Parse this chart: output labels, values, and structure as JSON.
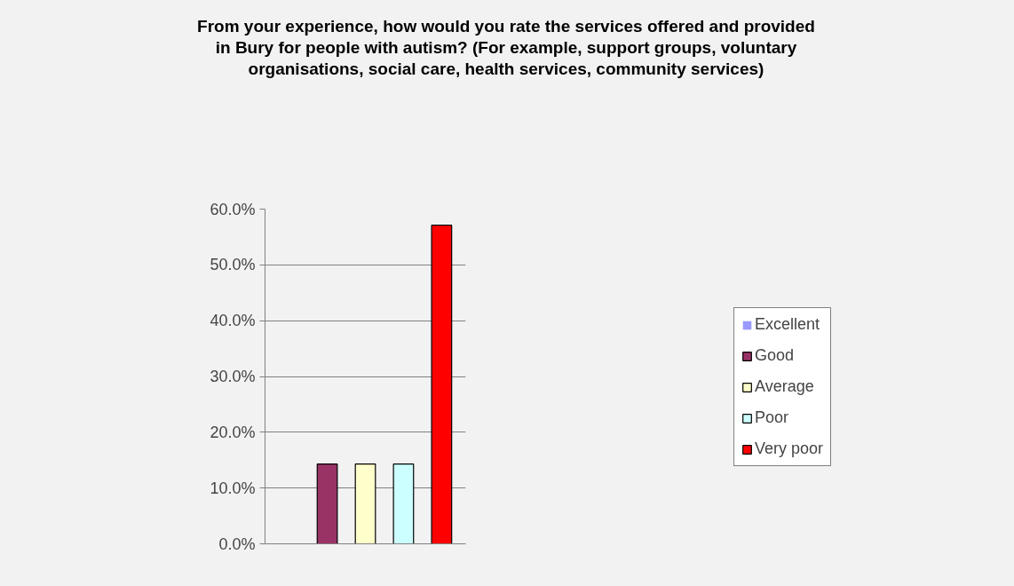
{
  "chart_data": {
    "type": "bar",
    "title": "From your experience, how would you rate the services offered and provided in Bury for people with autism? (For example, support groups, voluntary organisations, social care, health services, community services)",
    "categories": [
      null
    ],
    "series": [
      {
        "name": "Excellent",
        "color": "#9999ff",
        "values": [
          0
        ]
      },
      {
        "name": "Good",
        "color": "#993366",
        "values": [
          14.3
        ]
      },
      {
        "name": "Average",
        "color": "#ffffcc",
        "values": [
          14.3
        ]
      },
      {
        "name": "Poor",
        "color": "#ccffff",
        "values": [
          14.3
        ]
      },
      {
        "name": "Very poor",
        "color": "#ff0000",
        "values": [
          57.1
        ]
      }
    ],
    "ylim": [
      0,
      60
    ],
    "yticks": [
      {
        "value": 0,
        "label": "0.0%"
      },
      {
        "value": 10,
        "label": "10.0%"
      },
      {
        "value": 20,
        "label": "20.0%"
      },
      {
        "value": 30,
        "label": "30.0%"
      },
      {
        "value": 40,
        "label": "40.0%"
      },
      {
        "value": 50,
        "label": "50.0%"
      },
      {
        "value": 60,
        "label": "60.0%"
      }
    ],
    "grid": "y",
    "legend": "right",
    "tick_labels": "y"
  }
}
